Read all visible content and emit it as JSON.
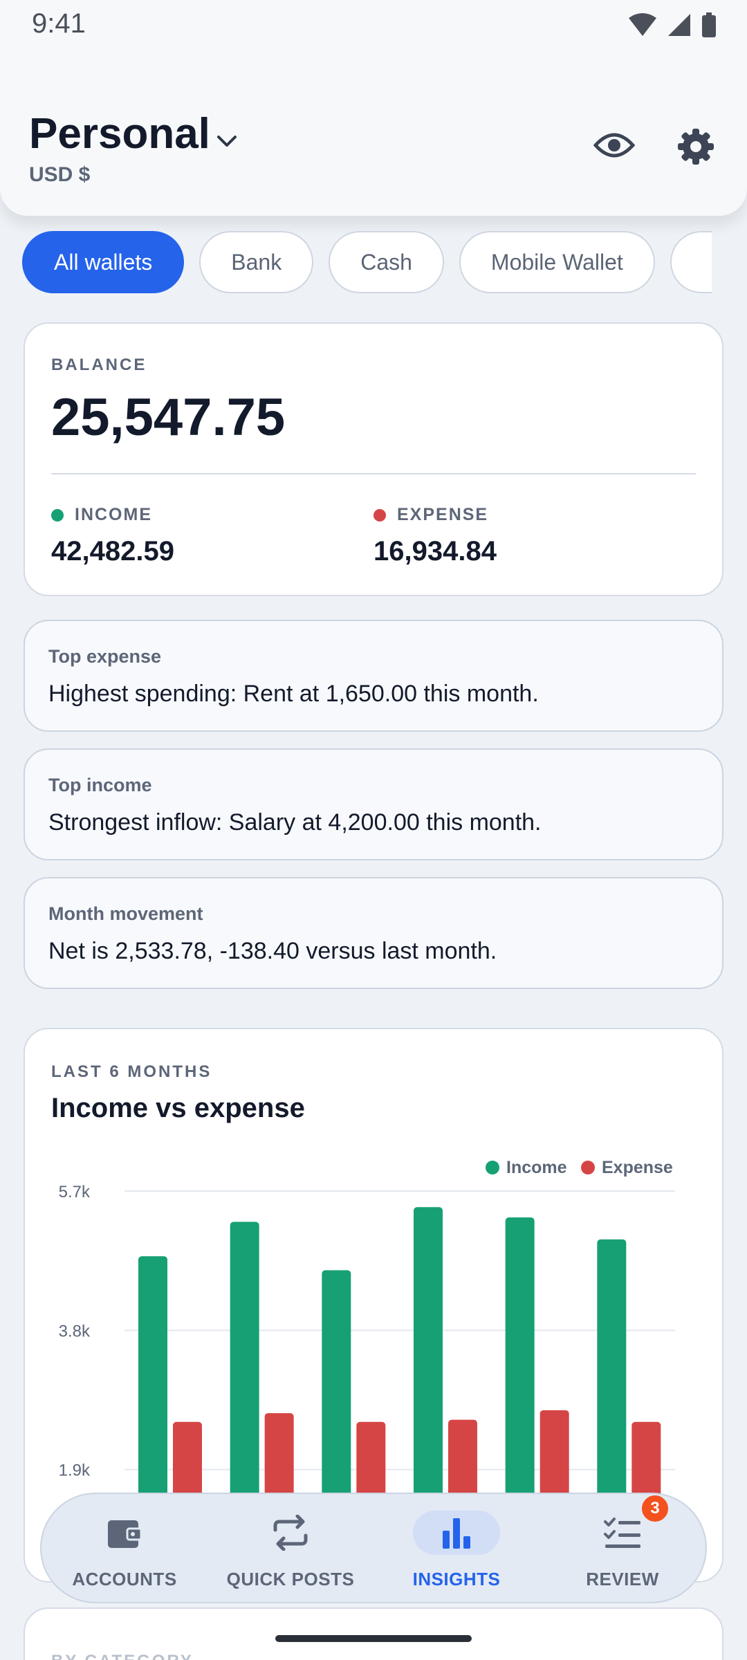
{
  "status_bar": {
    "time": "9:41"
  },
  "header": {
    "title": "Personal",
    "currency": "USD $"
  },
  "wallet_filters": {
    "chips": [
      {
        "label": "All wallets",
        "active": true
      },
      {
        "label": "Bank",
        "active": false
      },
      {
        "label": "Cash",
        "active": false
      },
      {
        "label": "Mobile Wallet",
        "active": false
      }
    ]
  },
  "balance": {
    "label": "BALANCE",
    "value": "25,547.75",
    "income_label": "INCOME",
    "income_value": "42,482.59",
    "expense_label": "EXPENSE",
    "expense_value": "16,934.84"
  },
  "insights": [
    {
      "title": "Top expense",
      "text": "Highest spending: Rent at 1,650.00 this month."
    },
    {
      "title": "Top income",
      "text": "Strongest inflow: Salary at 4,200.00 this month."
    },
    {
      "title": "Month movement",
      "text": "Net is 2,533.78, -138.40 versus last month."
    }
  ],
  "chart_section": {
    "label": "LAST 6 MONTHS",
    "title": "Income vs expense"
  },
  "chart_data": {
    "type": "bar",
    "y_ticks": [
      "5.7k",
      "3.8k",
      "1.9k"
    ],
    "y_tick_values": [
      5700,
      3800,
      1900
    ],
    "ylim": [
      0,
      5700
    ],
    "legend_position": "top-right",
    "grid": true,
    "series": [
      {
        "name": "Income",
        "color": "#16a074",
        "values": [
          4810,
          5280,
          4620,
          5480,
          5340,
          5040
        ]
      },
      {
        "name": "Expense",
        "color": "#d64545",
        "values": [
          2550,
          2670,
          2550,
          2580,
          2710,
          2550
        ]
      }
    ]
  },
  "category_section": {
    "label": "BY CATEGORY"
  },
  "bottom_nav": {
    "items": [
      {
        "label": "ACCOUNTS",
        "icon": "wallet-icon"
      },
      {
        "label": "QUICK POSTS",
        "icon": "repeat-icon"
      },
      {
        "label": "INSIGHTS",
        "icon": "bar-chart-icon",
        "active": true
      },
      {
        "label": "REVIEW",
        "icon": "checklist-icon",
        "badge": "3"
      }
    ]
  },
  "colors": {
    "accent": "#2563eb",
    "income": "#16a074",
    "expense": "#d64545",
    "badge": "#f4511e"
  }
}
